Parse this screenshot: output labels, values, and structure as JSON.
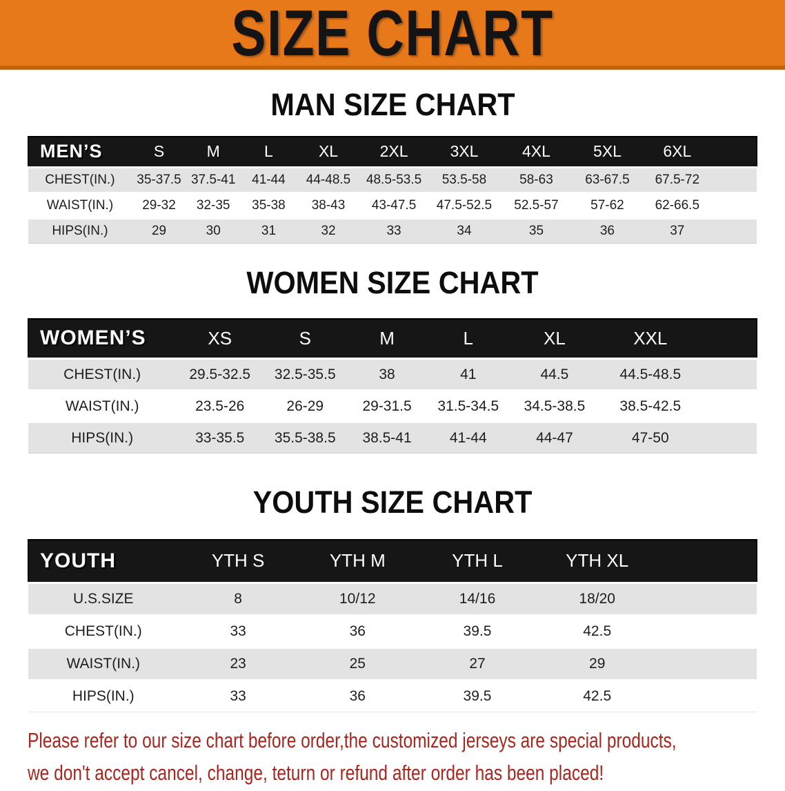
{
  "banner": {
    "title": "SIZE CHART"
  },
  "colors": {
    "banner_bg": "#E8791B",
    "banner_edge": "#C4640F",
    "header_bg": "#161616",
    "row_gray": "#E3E3E3",
    "footer_red": "#A8261E"
  },
  "sections": {
    "men": {
      "title": "MAN SIZE CHART",
      "header_label": "MEN’S",
      "columns": [
        "S",
        "M",
        "L",
        "XL",
        "2XL",
        "3XL",
        "4XL",
        "5XL",
        "6XL"
      ],
      "rows": [
        {
          "label": "CHEST(IN.)",
          "values": [
            "35-37.5",
            "37.5-41",
            "41-44",
            "44-48.5",
            "48.5-53.5",
            "53.5-58",
            "58-63",
            "63-67.5",
            "67.5-72"
          ]
        },
        {
          "label": "WAIST(IN.)",
          "values": [
            "29-32",
            "32-35",
            "35-38",
            "38-43",
            "43-47.5",
            "47.5-52.5",
            "52.5-57",
            "57-62",
            "62-66.5"
          ]
        },
        {
          "label": "HIPS(IN.)",
          "values": [
            "29",
            "30",
            "31",
            "32",
            "33",
            "34",
            "35",
            "36",
            "37"
          ]
        }
      ]
    },
    "women": {
      "title": "WOMEN SIZE CHART",
      "header_label": "WOMEN’S",
      "columns": [
        "XS",
        "S",
        "M",
        "L",
        "XL",
        "XXL"
      ],
      "rows": [
        {
          "label": "CHEST(IN.)",
          "values": [
            "29.5-32.5",
            "32.5-35.5",
            "38",
            "41",
            "44.5",
            "44.5-48.5"
          ]
        },
        {
          "label": "WAIST(IN.)",
          "values": [
            "23.5-26",
            "26-29",
            "29-31.5",
            "31.5-34.5",
            "34.5-38.5",
            "38.5-42.5"
          ]
        },
        {
          "label": "HIPS(IN.)",
          "values": [
            "33-35.5",
            "35.5-38.5",
            "38.5-41",
            "41-44",
            "44-47",
            "47-50"
          ]
        }
      ]
    },
    "youth": {
      "title": "YOUTH SIZE CHART",
      "header_label": "YOUTH",
      "columns": [
        "YTH S",
        "YTH M",
        "YTH L",
        "YTH XL"
      ],
      "rows": [
        {
          "label": "U.S.SIZE",
          "values": [
            "8",
            "10/12",
            "14/16",
            "18/20"
          ]
        },
        {
          "label": "CHEST(IN.)",
          "values": [
            "33",
            "36",
            "39.5",
            "42.5"
          ]
        },
        {
          "label": "WAIST(IN.)",
          "values": [
            "23",
            "25",
            "27",
            "29"
          ]
        },
        {
          "label": "HIPS(IN.)",
          "values": [
            "33",
            "36",
            "39.5",
            "42.5"
          ]
        }
      ]
    }
  },
  "footer": {
    "line1": "Please refer to our size chart before order,the customized jerseys are special products,",
    "line2": "we don't accept cancel, change, teturn or refund after order has been placed!"
  }
}
